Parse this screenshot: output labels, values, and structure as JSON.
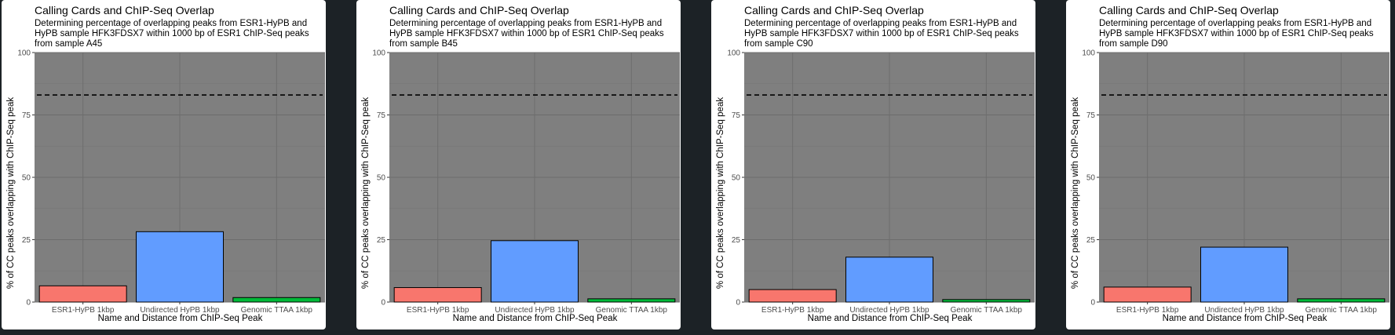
{
  "chart_data": [
    {
      "type": "bar",
      "title": "Calling Cards and ChIP-Seq Overlap",
      "subtitle": "Determining percentage of overlapping peaks from ESR1-HyPB and HyPB sample HFK3FDSX7 within 1000 bp of ESR1 ChIP-Seq peaks from sample A45",
      "xlabel": "Name and Distance from ChIP-Seq Peak",
      "ylabel": "% of CC peaks overlapping with ChIP-Seq peak",
      "categories": [
        "ESR1-HyPB 1kbp",
        "Undirected HyPB 1kbp",
        "Genomic TTAA 1kbp"
      ],
      "values": [
        6.5,
        28.2,
        1.8
      ],
      "bar_colors": [
        "#f8766d",
        "#619cff",
        "#00ba38"
      ],
      "reference_line": 83,
      "ylim": [
        0,
        100
      ],
      "yticks": [
        0,
        25,
        50,
        75,
        100
      ],
      "grid": true
    },
    {
      "type": "bar",
      "title": "Calling Cards and ChIP-Seq Overlap",
      "subtitle": "Determining percentage of overlapping peaks from ESR1-HyPB and HyPB sample HFK3FDSX7 within 1000 bp of ESR1 ChIP-Seq peaks from sample B45",
      "xlabel": "Name and Distance from ChIP-Seq Peak",
      "ylabel": "% of CC peaks overlapping with ChIP-Seq peak",
      "categories": [
        "ESR1-HyPB 1kbp",
        "Undirected HyPB 1kbp",
        "Genomic TTAA 1kbp"
      ],
      "values": [
        5.8,
        24.6,
        1.3
      ],
      "bar_colors": [
        "#f8766d",
        "#619cff",
        "#00ba38"
      ],
      "reference_line": 83,
      "ylim": [
        0,
        100
      ],
      "yticks": [
        0,
        25,
        50,
        75,
        100
      ],
      "grid": true
    },
    {
      "type": "bar",
      "title": "Calling Cards and ChIP-Seq Overlap",
      "subtitle": "Determining percentage of overlapping peaks from ESR1-HyPB and HyPB sample HFK3FDSX7 within 1000 bp of ESR1 ChIP-Seq peaks from sample C90",
      "xlabel": "Name and Distance from ChIP-Seq Peak",
      "ylabel": "% of CC peaks overlapping with ChIP-Seq peak",
      "categories": [
        "ESR1-HyPB 1kbp",
        "Undirected HyPB 1kbp",
        "Genomic TTAA 1kbp"
      ],
      "values": [
        5.0,
        18.0,
        1.0
      ],
      "bar_colors": [
        "#f8766d",
        "#619cff",
        "#00ba38"
      ],
      "reference_line": 83,
      "ylim": [
        0,
        100
      ],
      "yticks": [
        0,
        25,
        50,
        75,
        100
      ],
      "grid": true
    },
    {
      "type": "bar",
      "title": "Calling Cards and ChIP-Seq Overlap",
      "subtitle": "Determining percentage of overlapping peaks from ESR1-HyPB and HyPB sample HFK3FDSX7 within 1000 bp of ESR1 ChIP-Seq peaks from sample D90",
      "xlabel": "Name and Distance from ChIP-Seq Peak",
      "ylabel": "% of CC peaks overlapping with ChIP-Seq peak",
      "categories": [
        "ESR1-HyPB 1kbp",
        "Undirected HyPB 1kbp",
        "Genomic TTAA 1kbp"
      ],
      "values": [
        6.0,
        22.0,
        1.3
      ],
      "bar_colors": [
        "#f8766d",
        "#619cff",
        "#00ba38"
      ],
      "reference_line": 83,
      "ylim": [
        0,
        100
      ],
      "yticks": [
        0,
        25,
        50,
        75,
        100
      ],
      "grid": true
    }
  ]
}
